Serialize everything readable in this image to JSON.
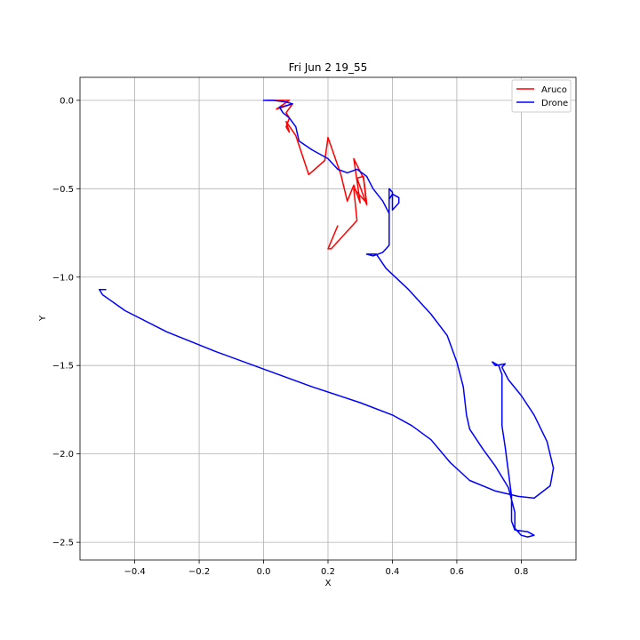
{
  "chart_data": {
    "type": "line",
    "title": "Fri Jun  2 19_55",
    "xlabel": "X",
    "ylabel": "Y",
    "xlim": [
      -0.57,
      0.97
    ],
    "ylim": [
      -2.6,
      0.13
    ],
    "xticks": [
      -0.4,
      -0.2,
      0.0,
      0.2,
      0.4,
      0.6,
      0.8
    ],
    "xtick_labels": [
      "−0.4",
      "−0.2",
      "0.0",
      "0.2",
      "0.4",
      "0.6",
      "0.8"
    ],
    "yticks": [
      0.0,
      -0.5,
      -1.0,
      -1.5,
      -2.0,
      -2.5
    ],
    "ytick_labels": [
      "0.0",
      "−0.5",
      "−1.0",
      "−1.5",
      "−2.0",
      "−2.5"
    ],
    "grid": true,
    "legend_position": "top-right",
    "series": [
      {
        "name": "Aruco",
        "color": "#ff0000",
        "points": [
          [
            0.01,
            0.0
          ],
          [
            0.08,
            0.0
          ],
          [
            0.04,
            -0.05
          ],
          [
            0.09,
            -0.02
          ],
          [
            0.07,
            -0.07
          ],
          [
            0.08,
            -0.1
          ],
          [
            0.07,
            -0.15
          ],
          [
            0.08,
            -0.18
          ],
          [
            0.07,
            -0.12
          ],
          [
            0.1,
            -0.2
          ],
          [
            0.14,
            -0.42
          ],
          [
            0.19,
            -0.34
          ],
          [
            0.2,
            -0.21
          ],
          [
            0.24,
            -0.42
          ],
          [
            0.26,
            -0.57
          ],
          [
            0.28,
            -0.48
          ],
          [
            0.3,
            -0.58
          ],
          [
            0.28,
            -0.33
          ],
          [
            0.31,
            -0.44
          ],
          [
            0.32,
            -0.59
          ],
          [
            0.29,
            -0.44
          ],
          [
            0.31,
            -0.43
          ],
          [
            0.32,
            -0.58
          ],
          [
            0.28,
            -0.5
          ],
          [
            0.29,
            -0.68
          ],
          [
            0.21,
            -0.84
          ],
          [
            0.2,
            -0.84
          ],
          [
            0.23,
            -0.71
          ]
        ]
      },
      {
        "name": "Drone",
        "color": "#0000ff",
        "points": [
          [
            0.0,
            0.0
          ],
          [
            0.03,
            0.0
          ],
          [
            0.07,
            -0.01
          ],
          [
            0.09,
            -0.02
          ],
          [
            0.05,
            -0.04
          ],
          [
            0.06,
            -0.07
          ],
          [
            0.08,
            -0.1
          ],
          [
            0.1,
            -0.15
          ],
          [
            0.11,
            -0.23
          ],
          [
            0.15,
            -0.28
          ],
          [
            0.2,
            -0.33
          ],
          [
            0.23,
            -0.39
          ],
          [
            0.26,
            -0.41
          ],
          [
            0.29,
            -0.39
          ],
          [
            0.32,
            -0.43
          ],
          [
            0.34,
            -0.5
          ],
          [
            0.37,
            -0.57
          ],
          [
            0.39,
            -0.64
          ],
          [
            0.39,
            -0.5
          ],
          [
            0.4,
            -0.52
          ],
          [
            0.4,
            -0.62
          ],
          [
            0.42,
            -0.58
          ],
          [
            0.42,
            -0.55
          ],
          [
            0.4,
            -0.53
          ],
          [
            0.39,
            -0.56
          ],
          [
            0.39,
            -0.82
          ],
          [
            0.37,
            -0.86
          ],
          [
            0.34,
            -0.88
          ],
          [
            0.32,
            -0.87
          ],
          [
            0.35,
            -0.87
          ],
          [
            0.38,
            -0.95
          ],
          [
            0.45,
            -1.07
          ],
          [
            0.52,
            -1.21
          ],
          [
            0.57,
            -1.33
          ],
          [
            0.6,
            -1.48
          ],
          [
            0.62,
            -1.62
          ],
          [
            0.63,
            -1.78
          ],
          [
            0.64,
            -1.86
          ],
          [
            0.68,
            -1.97
          ],
          [
            0.72,
            -2.07
          ],
          [
            0.76,
            -2.19
          ],
          [
            0.78,
            -2.33
          ],
          [
            0.78,
            -2.42
          ],
          [
            0.8,
            -2.46
          ],
          [
            0.82,
            -2.47
          ],
          [
            0.84,
            -2.46
          ],
          [
            0.82,
            -2.44
          ],
          [
            0.78,
            -2.43
          ],
          [
            0.77,
            -2.38
          ],
          [
            0.77,
            -2.24
          ],
          [
            0.76,
            -2.1
          ],
          [
            0.75,
            -1.96
          ],
          [
            0.74,
            -1.84
          ],
          [
            0.74,
            -1.7
          ],
          [
            0.74,
            -1.55
          ],
          [
            0.73,
            -1.5
          ],
          [
            0.71,
            -1.48
          ],
          [
            0.72,
            -1.5
          ],
          [
            0.75,
            -1.49
          ],
          [
            0.74,
            -1.51
          ],
          [
            0.76,
            -1.58
          ],
          [
            0.8,
            -1.67
          ],
          [
            0.84,
            -1.78
          ],
          [
            0.88,
            -1.93
          ],
          [
            0.9,
            -2.08
          ],
          [
            0.89,
            -2.18
          ],
          [
            0.84,
            -2.25
          ],
          [
            0.79,
            -2.24
          ],
          [
            0.72,
            -2.21
          ],
          [
            0.64,
            -2.15
          ],
          [
            0.58,
            -2.05
          ],
          [
            0.52,
            -1.92
          ],
          [
            0.46,
            -1.84
          ],
          [
            0.4,
            -1.78
          ],
          [
            0.3,
            -1.71
          ],
          [
            0.15,
            -1.62
          ],
          [
            0.0,
            -1.52
          ],
          [
            -0.15,
            -1.42
          ],
          [
            -0.3,
            -1.31
          ],
          [
            -0.43,
            -1.19
          ],
          [
            -0.5,
            -1.1
          ],
          [
            -0.51,
            -1.07
          ],
          [
            -0.49,
            -1.07
          ]
        ]
      }
    ]
  }
}
